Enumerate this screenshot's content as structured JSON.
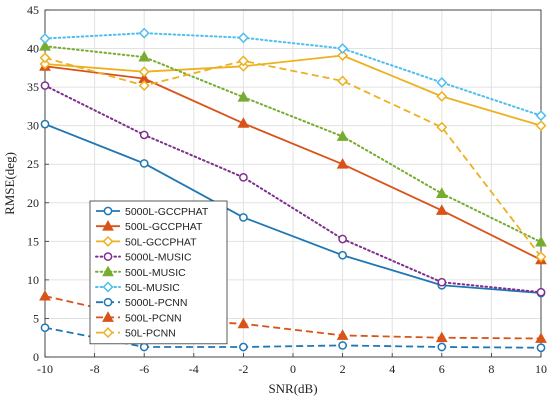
{
  "chart_data": {
    "type": "line",
    "xlabel": "SNR(dB)",
    "ylabel": "RMSE(deg)",
    "x": [
      -10,
      -6,
      -2,
      2,
      6,
      10
    ],
    "xlim": [
      -10,
      10
    ],
    "ylim": [
      0,
      45
    ],
    "xticks": [
      -10,
      -8,
      -6,
      -4,
      -2,
      0,
      2,
      4,
      6,
      8,
      10
    ],
    "yticks": [
      0,
      5,
      10,
      15,
      20,
      25,
      30,
      35,
      40,
      45
    ],
    "grid": true,
    "legend_position": "lower-left",
    "series": [
      {
        "name": "5000L-GCCPHAT",
        "values": [
          30.2,
          25.1,
          18.1,
          13.2,
          9.3,
          8.3
        ],
        "color": "#1f77b4",
        "dash": "solid",
        "marker": "circle"
      },
      {
        "name": "500L-GCCPHAT",
        "values": [
          37.7,
          36.1,
          30.3,
          25.0,
          19.0,
          12.6
        ],
        "color": "#d95319",
        "dash": "solid",
        "marker": "triangle"
      },
      {
        "name": "50L-GCCPHAT",
        "values": [
          38.0,
          37.0,
          37.7,
          39.1,
          33.8,
          30.0
        ],
        "color": "#edb120",
        "dash": "solid",
        "marker": "diamond"
      },
      {
        "name": "5000L-MUSIC",
        "values": [
          35.2,
          28.8,
          23.3,
          15.3,
          9.7,
          8.4
        ],
        "color": "#7e2f8e",
        "dash": "dotted",
        "marker": "circle"
      },
      {
        "name": "500L-MUSIC",
        "values": [
          40.3,
          38.9,
          33.7,
          28.6,
          21.2,
          14.9
        ],
        "color": "#77ac30",
        "dash": "dotted",
        "marker": "triangle"
      },
      {
        "name": "50L-MUSIC",
        "values": [
          41.3,
          42.0,
          41.4,
          40.0,
          35.6,
          31.3
        ],
        "color": "#4dbeee",
        "dash": "dotted",
        "marker": "diamond"
      },
      {
        "name": "5000L-PCNN",
        "values": [
          3.8,
          1.3,
          1.3,
          1.5,
          1.3,
          1.2
        ],
        "color": "#1f77b4",
        "dash": "dashed",
        "marker": "circle"
      },
      {
        "name": "500L-PCNN",
        "values": [
          7.9,
          5.0,
          4.3,
          2.8,
          2.5,
          2.4
        ],
        "color": "#d95319",
        "dash": "dashed",
        "marker": "triangle"
      },
      {
        "name": "50L-PCNN",
        "values": [
          38.8,
          35.2,
          38.4,
          35.8,
          29.8,
          13.0
        ],
        "color": "#edb120",
        "dash": "dashed",
        "marker": "diamond"
      }
    ]
  }
}
